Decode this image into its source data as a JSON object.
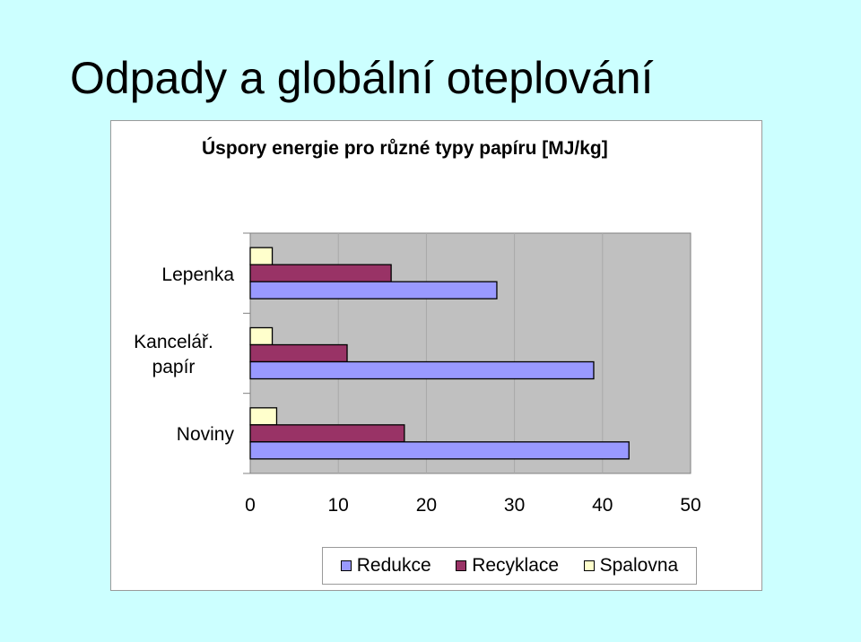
{
  "slide": {
    "title": "Odpady a globální oteplování"
  },
  "chart_data": {
    "type": "bar",
    "orientation": "horizontal",
    "title": "Úspory energie pro různé typy papíru [MJ/kg]",
    "categories": [
      "Lepenka",
      "Kancelář. papír",
      "Noviny"
    ],
    "category_lines": [
      [
        "Lepenka"
      ],
      [
        "Kancelář.",
        "papír"
      ],
      [
        "Noviny"
      ]
    ],
    "series": [
      {
        "name": "Redukce",
        "values": [
          28,
          39,
          43
        ],
        "color": "#9999ff"
      },
      {
        "name": "Recyklace",
        "values": [
          16,
          11,
          17.5
        ],
        "color": "#993366"
      },
      {
        "name": "Spalovna",
        "values": [
          2.5,
          2.5,
          3
        ],
        "color": "#ffffcc"
      }
    ],
    "xlim": [
      0,
      50
    ],
    "xticks": [
      "0",
      "10",
      "20",
      "30",
      "40",
      "50"
    ],
    "grid": true,
    "plot_background": "#c0c0c0",
    "legend_position": "bottom"
  }
}
